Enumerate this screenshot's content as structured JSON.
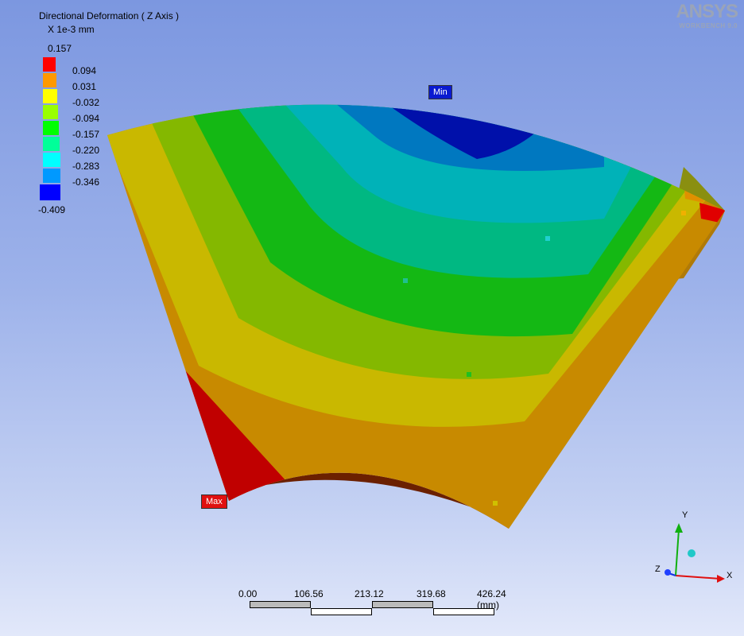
{
  "result": {
    "title": "Directional Deformation ( Z Axis )",
    "units": "X 1e-3 mm"
  },
  "legend": {
    "max": "0.157",
    "min": "-0.409",
    "labels": [
      "0.094",
      "0.031",
      "-0.032",
      "-0.094",
      "-0.157",
      "-0.220",
      "-0.283",
      "-0.346"
    ],
    "colors": [
      "#ff0000",
      "#ff9900",
      "#ffff00",
      "#99ff00",
      "#00ff00",
      "#00ff99",
      "#00ffff",
      "#0099ff",
      "#0000ff"
    ]
  },
  "brand": {
    "name": "ANSYS",
    "sub": "WORKBENCH 9.0"
  },
  "probes": {
    "min": "Min",
    "max": "Max"
  },
  "scale": {
    "ticks": [
      "0.00",
      "106.56",
      "213.12",
      "319.68",
      "426.24 (mm)"
    ]
  },
  "triad": {
    "x": "X",
    "y": "Y",
    "z": "Z"
  }
}
